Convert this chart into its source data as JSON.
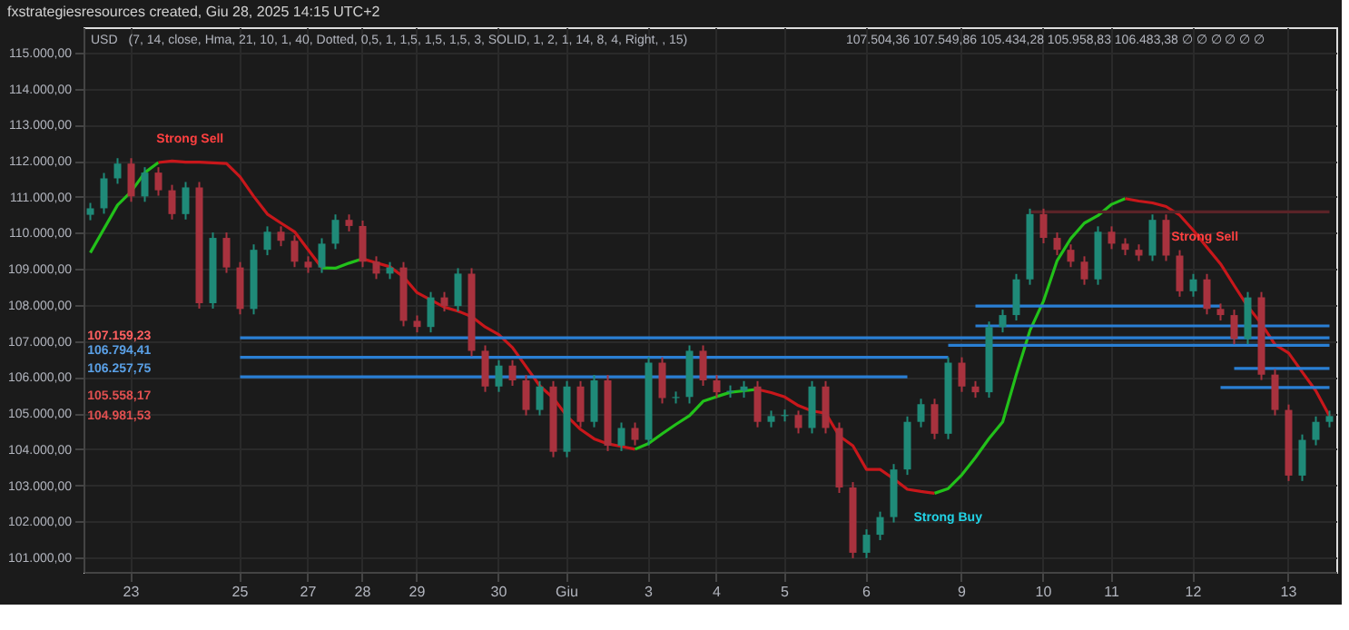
{
  "chart_data": {
    "type": "candlestick",
    "title": "fxstrategiesresources created, Giu 28, 2025 14:15 UTC+2",
    "categories": [
      null,
      null,
      null,
      "23",
      null,
      null,
      null,
      null,
      null,
      null,
      null,
      "25",
      null,
      null,
      null,
      null,
      "27",
      null,
      null,
      null,
      "28",
      null,
      null,
      null,
      "29",
      null,
      null,
      null,
      null,
      null,
      "30",
      null,
      null,
      null,
      null,
      "Giu",
      null,
      null,
      null,
      null,
      null,
      "3",
      null,
      null,
      null,
      null,
      "4",
      null,
      null,
      null,
      null,
      "5",
      null,
      null,
      null,
      null,
      null,
      "6",
      null,
      null,
      null,
      null,
      null,
      null,
      "9",
      null,
      null,
      null,
      null,
      null,
      "10",
      null,
      null,
      null,
      null,
      "11",
      null,
      null,
      null,
      null,
      null,
      "12",
      null,
      null,
      null,
      null,
      null,
      null,
      "13",
      null,
      null,
      null
    ],
    "ohlc": [
      [
        110500,
        110830,
        110350,
        110680
      ],
      [
        110680,
        111660,
        110530,
        111510
      ],
      [
        111510,
        112070,
        111360,
        111920
      ],
      [
        111920,
        112070,
        110860,
        111010
      ],
      [
        111010,
        111820,
        110860,
        111670
      ],
      [
        111670,
        111820,
        111030,
        111180
      ],
      [
        111180,
        111330,
        110370,
        110520
      ],
      [
        110520,
        111410,
        110370,
        111260
      ],
      [
        111260,
        111410,
        107900,
        108050
      ],
      [
        108050,
        110010,
        107900,
        109860
      ],
      [
        109860,
        110010,
        108890,
        109040
      ],
      [
        109040,
        109190,
        107740,
        107890
      ],
      [
        107890,
        109680,
        107740,
        109530
      ],
      [
        109530,
        110180,
        109380,
        110030
      ],
      [
        110030,
        110180,
        109630,
        109780
      ],
      [
        109780,
        109930,
        109050,
        109200
      ],
      [
        109200,
        109350,
        108890,
        109040
      ],
      [
        109040,
        109850,
        108890,
        109700
      ],
      [
        109700,
        110510,
        109550,
        110360
      ],
      [
        110360,
        110510,
        110040,
        110190
      ],
      [
        110190,
        110340,
        109050,
        109200
      ],
      [
        109200,
        109350,
        108720,
        108870
      ],
      [
        108870,
        109190,
        108720,
        109040
      ],
      [
        109040,
        109190,
        107410,
        107560
      ],
      [
        107560,
        107710,
        107240,
        107390
      ],
      [
        107390,
        108360,
        107240,
        108210
      ],
      [
        108210,
        108360,
        107820,
        107970
      ],
      [
        107970,
        109020,
        107820,
        108870
      ],
      [
        108870,
        109020,
        106580,
        106730
      ],
      [
        106730,
        106880,
        105590,
        105740
      ],
      [
        105740,
        106470,
        105590,
        106320
      ],
      [
        106320,
        106470,
        105760,
        105910
      ],
      [
        105910,
        106060,
        104940,
        105090
      ],
      [
        105090,
        105890,
        104940,
        105740
      ],
      [
        105740,
        105890,
        103780,
        103930
      ],
      [
        103930,
        105890,
        103780,
        105740
      ],
      [
        105740,
        105890,
        104610,
        104760
      ],
      [
        104760,
        106060,
        104610,
        105910
      ],
      [
        105910,
        106060,
        103950,
        104100
      ],
      [
        104100,
        104740,
        103950,
        104590
      ],
      [
        104590,
        104740,
        104110,
        104260
      ],
      [
        104260,
        106550,
        104110,
        106400
      ],
      [
        106400,
        106550,
        105270,
        105420
      ],
      [
        105420,
        105600,
        105270,
        105450
      ],
      [
        105450,
        106880,
        105270,
        106730
      ],
      [
        106730,
        106880,
        105760,
        105910
      ],
      [
        105910,
        106060,
        105430,
        105580
      ],
      [
        105580,
        105770,
        105430,
        105620
      ],
      [
        105620,
        105890,
        105430,
        105740
      ],
      [
        105740,
        105890,
        104610,
        104760
      ],
      [
        104760,
        105070,
        104610,
        104920
      ],
      [
        104920,
        105100,
        104770,
        104950
      ],
      [
        104950,
        105070,
        104440,
        104590
      ],
      [
        104590,
        105890,
        104440,
        105740
      ],
      [
        105740,
        105890,
        104440,
        104590
      ],
      [
        104590,
        104740,
        102790,
        102940
      ],
      [
        102940,
        103090,
        100980,
        101130
      ],
      [
        101130,
        101780,
        100980,
        101630
      ],
      [
        101630,
        102270,
        101480,
        102120
      ],
      [
        102120,
        103590,
        101970,
        103440
      ],
      [
        103440,
        104910,
        103290,
        104760
      ],
      [
        104760,
        105400,
        104610,
        105250
      ],
      [
        105250,
        105400,
        104280,
        104430
      ],
      [
        104430,
        106550,
        104280,
        106400
      ],
      [
        106400,
        106550,
        105590,
        105740
      ],
      [
        105740,
        105890,
        105430,
        105580
      ],
      [
        105580,
        107540,
        105430,
        107390
      ],
      [
        107390,
        107870,
        107240,
        107720
      ],
      [
        107720,
        108860,
        107570,
        108710
      ],
      [
        108710,
        110670,
        108560,
        110520
      ],
      [
        110520,
        110670,
        109710,
        109860
      ],
      [
        109860,
        110010,
        109380,
        109530
      ],
      [
        109530,
        109680,
        109050,
        109200
      ],
      [
        109200,
        109350,
        108560,
        108710
      ],
      [
        108710,
        110180,
        108560,
        110030
      ],
      [
        110030,
        110180,
        109550,
        109700
      ],
      [
        109700,
        109850,
        109380,
        109530
      ],
      [
        109530,
        109680,
        109220,
        109370
      ],
      [
        109370,
        110510,
        109220,
        110360
      ],
      [
        110360,
        110510,
        109220,
        109370
      ],
      [
        109370,
        109520,
        108230,
        108380
      ],
      [
        108380,
        108860,
        108230,
        108710
      ],
      [
        108710,
        108860,
        107740,
        107890
      ],
      [
        107890,
        108040,
        107570,
        107720
      ],
      [
        107720,
        107870,
        106910,
        107060
      ],
      [
        107060,
        108360,
        106910,
        108210
      ],
      [
        108210,
        108360,
        105920,
        106070
      ],
      [
        106070,
        106220,
        104940,
        105090
      ],
      [
        105090,
        105240,
        103120,
        103270
      ],
      [
        103270,
        104410,
        103120,
        104260
      ],
      [
        104260,
        104910,
        104110,
        104760
      ],
      [
        104760,
        105070,
        104610,
        104920
      ]
    ],
    "series": [
      {
        "type": "line",
        "color": "#22c11a",
        "values": [
          109450,
          110110,
          110770,
          111140,
          111670,
          111950,
          null,
          null,
          null,
          null,
          null,
          null,
          null,
          null,
          null,
          null,
          null,
          null,
          null,
          null,
          null,
          null,
          null,
          null,
          null,
          null,
          null,
          null,
          null,
          null,
          null,
          null,
          null,
          null,
          null,
          null,
          null,
          null,
          null,
          null,
          null,
          null,
          null,
          null,
          null,
          null,
          null,
          null,
          null,
          null,
          null,
          null,
          null,
          null,
          null,
          null,
          null,
          null,
          null,
          null,
          null,
          null,
          null,
          null,
          null,
          null,
          null,
          null,
          null,
          null,
          null,
          null,
          null,
          null,
          null,
          null,
          null,
          null,
          null,
          null,
          null,
          null,
          null,
          null,
          null,
          null,
          null,
          null,
          null,
          null,
          null,
          null
        ]
      },
      {
        "type": "line",
        "color": "#c8171b",
        "values": [
          null,
          null,
          null,
          null,
          null,
          111950,
          111990,
          111960,
          111960,
          111940,
          111920,
          111550,
          111010,
          110520,
          110270,
          110030,
          109530,
          109030,
          null,
          null,
          null,
          null,
          null,
          null,
          null,
          null,
          null,
          null,
          null,
          null,
          null,
          null,
          null,
          null,
          null,
          null,
          null,
          null,
          null,
          null,
          null,
          null,
          null,
          null,
          null,
          null,
          null,
          null,
          null,
          null,
          null,
          null,
          null,
          null,
          null,
          null,
          null,
          null,
          null,
          null,
          null,
          null,
          null,
          null,
          null,
          null,
          null,
          null,
          null,
          null,
          null,
          null,
          null,
          null,
          null,
          null,
          null,
          null,
          null,
          null,
          null,
          null,
          null,
          null,
          null,
          null,
          null,
          null,
          null,
          null,
          null,
          null
        ]
      },
      {
        "type": "line",
        "color": "#22c11a",
        "values": [
          null,
          null,
          null,
          null,
          null,
          null,
          null,
          null,
          null,
          null,
          null,
          null,
          null,
          null,
          null,
          null,
          null,
          109030,
          109020,
          109160,
          109280,
          null,
          null,
          null,
          null,
          null,
          null,
          null,
          null,
          null,
          null,
          null,
          null,
          null,
          null,
          null,
          null,
          null,
          null,
          null,
          null,
          null,
          null,
          null,
          null,
          null,
          null,
          null,
          null,
          null,
          null,
          null,
          null,
          null,
          null,
          null,
          null,
          null,
          null,
          null,
          null,
          null,
          null,
          null,
          null,
          null,
          null,
          null,
          null,
          null,
          null,
          null,
          null,
          null,
          null,
          null,
          null,
          null,
          null,
          null,
          null,
          null,
          null,
          null,
          null,
          null,
          null,
          null,
          null,
          null,
          null,
          null
        ]
      },
      {
        "type": "line",
        "color": "#c8171b",
        "values": [
          null,
          null,
          null,
          null,
          null,
          null,
          null,
          null,
          null,
          null,
          null,
          null,
          null,
          null,
          null,
          null,
          null,
          null,
          null,
          null,
          109280,
          109170,
          109060,
          108780,
          108340,
          108140,
          107940,
          107830,
          107680,
          107390,
          107180,
          106820,
          106290,
          105760,
          105420,
          104920,
          104550,
          104290,
          104150,
          104080,
          104000,
          null,
          null,
          null,
          null,
          null,
          null,
          null,
          null,
          null,
          null,
          null,
          null,
          null,
          null,
          null,
          null,
          null,
          null,
          null,
          null,
          null,
          null,
          null,
          null,
          null,
          null,
          null,
          null,
          null,
          null,
          null,
          null,
          null,
          null,
          null,
          null,
          null,
          null,
          null,
          null,
          null,
          null,
          null,
          null,
          null,
          null,
          null,
          null,
          null,
          null,
          null
        ]
      },
      {
        "type": "line",
        "color": "#22c11a",
        "values": [
          null,
          null,
          null,
          null,
          null,
          null,
          null,
          null,
          null,
          null,
          null,
          null,
          null,
          null,
          null,
          null,
          null,
          null,
          null,
          null,
          null,
          null,
          null,
          null,
          null,
          null,
          null,
          null,
          null,
          null,
          null,
          null,
          null,
          null,
          null,
          null,
          null,
          null,
          null,
          null,
          104000,
          104160,
          104430,
          104690,
          104930,
          105330,
          105460,
          105580,
          105620,
          105660,
          null,
          null,
          null,
          null,
          null,
          null,
          null,
          null,
          null,
          null,
          null,
          null,
          null,
          null,
          null,
          null,
          null,
          null,
          null,
          null,
          null,
          null,
          null,
          null,
          null,
          null,
          null,
          null,
          null,
          null,
          null,
          null,
          null,
          null,
          null,
          null,
          null,
          null,
          null,
          null,
          null,
          null
        ]
      },
      {
        "type": "line",
        "color": "#c8171b",
        "values": [
          null,
          null,
          null,
          null,
          null,
          null,
          null,
          null,
          null,
          null,
          null,
          null,
          null,
          null,
          null,
          null,
          null,
          null,
          null,
          null,
          null,
          null,
          null,
          null,
          null,
          null,
          null,
          null,
          null,
          null,
          null,
          null,
          null,
          null,
          null,
          null,
          null,
          null,
          null,
          null,
          null,
          null,
          null,
          null,
          null,
          null,
          null,
          null,
          null,
          105660,
          105570,
          105450,
          105210,
          105060,
          105000,
          104370,
          104100,
          103440,
          103440,
          103180,
          102890,
          102830,
          102780,
          null,
          null,
          null,
          null,
          null,
          null,
          null,
          null,
          null,
          null,
          null,
          null,
          null,
          null,
          null,
          null,
          null,
          null,
          null,
          null,
          null,
          null,
          null,
          null,
          null,
          null,
          null,
          null,
          null
        ]
      },
      {
        "type": "line",
        "color": "#22c11a",
        "values": [
          null,
          null,
          null,
          null,
          null,
          null,
          null,
          null,
          null,
          null,
          null,
          null,
          null,
          null,
          null,
          null,
          null,
          null,
          null,
          null,
          null,
          null,
          null,
          null,
          null,
          null,
          null,
          null,
          null,
          null,
          null,
          null,
          null,
          null,
          null,
          null,
          null,
          null,
          null,
          null,
          null,
          null,
          null,
          null,
          null,
          null,
          null,
          null,
          null,
          null,
          null,
          null,
          null,
          null,
          null,
          null,
          null,
          null,
          null,
          null,
          null,
          null,
          102780,
          102910,
          103290,
          103770,
          104300,
          104760,
          106070,
          107290,
          108110,
          109230,
          109840,
          110270,
          110480,
          110790,
          110950,
          null,
          null,
          null,
          null,
          null,
          null,
          null,
          null,
          null,
          null,
          null,
          null,
          null,
          null,
          null
        ]
      },
      {
        "type": "line",
        "color": "#c8171b",
        "values": [
          null,
          null,
          null,
          null,
          null,
          null,
          null,
          null,
          null,
          null,
          null,
          null,
          null,
          null,
          null,
          null,
          null,
          null,
          null,
          null,
          null,
          null,
          null,
          null,
          null,
          null,
          null,
          null,
          null,
          null,
          null,
          null,
          null,
          null,
          null,
          null,
          null,
          null,
          null,
          null,
          null,
          null,
          null,
          null,
          null,
          null,
          null,
          null,
          null,
          null,
          null,
          null,
          null,
          null,
          null,
          null,
          null,
          null,
          null,
          null,
          null,
          null,
          null,
          null,
          null,
          null,
          null,
          null,
          null,
          null,
          null,
          null,
          null,
          null,
          null,
          null,
          110950,
          110880,
          110830,
          110730,
          110490,
          110070,
          109600,
          109140,
          108540,
          107960,
          107480,
          106900,
          106670,
          106140,
          105620,
          104920
        ]
      },
      {
        "type": "line",
        "color": "#2a7fd4",
        "values": [
          null,
          null,
          null,
          null,
          null,
          null,
          null,
          null,
          null,
          null,
          null,
          107090,
          107090,
          107090,
          107090,
          107090,
          107090,
          107090,
          107090,
          107090,
          107090,
          107090,
          107090,
          107090,
          107090,
          107090,
          107090,
          107090,
          107090,
          107090,
          107090,
          107090,
          107090,
          107090,
          107090,
          107090,
          107090,
          107090,
          107090,
          107090,
          107090,
          107090,
          107090,
          107090,
          107090,
          107090,
          107090,
          107090,
          107090,
          107090,
          107090,
          107090,
          107090,
          107090,
          107090,
          107090,
          107090,
          107090,
          107090,
          107090,
          107090,
          107090,
          107090,
          107090,
          107090,
          107090,
          107090,
          107090,
          107090,
          107090,
          107090,
          107090,
          107090,
          107090,
          107090,
          107090,
          107090,
          107090,
          107090,
          107090,
          107090,
          107090,
          107090,
          107090,
          107090,
          107090,
          107090,
          107090,
          107090,
          107090,
          107090,
          107090
        ]
      },
      {
        "type": "line",
        "color": "#2a7fd4",
        "values": [
          null,
          null,
          null,
          null,
          null,
          null,
          null,
          null,
          null,
          null,
          null,
          106550,
          106550,
          106550,
          106550,
          106550,
          106550,
          106550,
          106550,
          106550,
          106550,
          106550,
          106550,
          106550,
          106550,
          106550,
          106550,
          106550,
          106550,
          106550,
          106550,
          106550,
          106550,
          106550,
          106550,
          106550,
          106550,
          106550,
          106550,
          106550,
          106550,
          106550,
          106550,
          106550,
          106550,
          106550,
          106550,
          106550,
          106550,
          106550,
          106550,
          106550,
          106550,
          106550,
          106550,
          106550,
          106550,
          106550,
          106550,
          106550,
          106550,
          106550,
          106550,
          106550,
          null,
          null,
          null,
          null,
          null,
          null,
          null,
          null,
          null,
          null,
          null,
          null,
          null,
          null,
          null,
          null,
          null,
          null,
          null,
          null,
          null,
          null,
          null,
          null,
          null,
          null,
          null,
          null
        ]
      },
      {
        "type": "line",
        "color": "#2a7fd4",
        "values": [
          null,
          null,
          null,
          null,
          null,
          null,
          null,
          null,
          null,
          null,
          null,
          106010,
          106010,
          106010,
          106010,
          106010,
          106010,
          106010,
          106010,
          106010,
          106010,
          106010,
          106010,
          106010,
          106010,
          106010,
          106010,
          106010,
          106010,
          106010,
          106010,
          106010,
          106010,
          106010,
          106010,
          106010,
          106010,
          106010,
          106010,
          106010,
          106010,
          106010,
          106010,
          106010,
          106010,
          106010,
          106010,
          106010,
          106010,
          106010,
          106010,
          106010,
          106010,
          106010,
          106010,
          106010,
          106010,
          106010,
          106010,
          106010,
          106010,
          null,
          null,
          null,
          null,
          null,
          null,
          null,
          null,
          null,
          null,
          null,
          null,
          null,
          null,
          null,
          null,
          null,
          null,
          null,
          null,
          null,
          null,
          null,
          null,
          null,
          null,
          null,
          null,
          null,
          null,
          null
        ]
      },
      {
        "type": "line",
        "color": "#2a7fd4",
        "values": [
          null,
          null,
          null,
          null,
          null,
          null,
          null,
          null,
          null,
          null,
          null,
          null,
          null,
          null,
          null,
          null,
          null,
          null,
          null,
          null,
          null,
          null,
          null,
          null,
          null,
          null,
          null,
          null,
          null,
          null,
          null,
          null,
          null,
          null,
          null,
          null,
          null,
          null,
          null,
          null,
          null,
          null,
          null,
          null,
          null,
          null,
          null,
          null,
          null,
          null,
          null,
          null,
          null,
          null,
          null,
          null,
          null,
          null,
          null,
          null,
          null,
          null,
          null,
          null,
          null,
          107970,
          107970,
          107970,
          107970,
          107970,
          107970,
          107970,
          107970,
          107970,
          107970,
          107970,
          107970,
          107970,
          107970,
          107970,
          107970,
          107970,
          107970,
          107970,
          null,
          null,
          null,
          null,
          null,
          null,
          null,
          null
        ]
      },
      {
        "type": "line",
        "color": "#2a7fd4",
        "values": [
          null,
          null,
          null,
          null,
          null,
          null,
          null,
          null,
          null,
          null,
          null,
          null,
          null,
          null,
          null,
          null,
          null,
          null,
          null,
          null,
          null,
          null,
          null,
          null,
          null,
          null,
          null,
          null,
          null,
          null,
          null,
          null,
          null,
          null,
          null,
          null,
          null,
          null,
          null,
          null,
          null,
          null,
          null,
          null,
          null,
          null,
          null,
          null,
          null,
          null,
          null,
          null,
          null,
          null,
          null,
          null,
          null,
          null,
          null,
          null,
          null,
          null,
          null,
          null,
          null,
          107420,
          107420,
          107420,
          107420,
          107420,
          107420,
          107420,
          107420,
          107420,
          107420,
          107420,
          107420,
          107420,
          107420,
          107420,
          107420,
          107420,
          107420,
          107420,
          107420,
          107420,
          107420,
          107420,
          107420,
          107420,
          107420,
          107420
        ]
      },
      {
        "type": "line",
        "color": "#2a7fd4",
        "values": [
          null,
          null,
          null,
          null,
          null,
          null,
          null,
          null,
          null,
          null,
          null,
          null,
          null,
          null,
          null,
          null,
          null,
          null,
          null,
          null,
          null,
          null,
          null,
          null,
          null,
          null,
          null,
          null,
          null,
          null,
          null,
          null,
          null,
          null,
          null,
          null,
          null,
          null,
          null,
          null,
          null,
          null,
          null,
          null,
          null,
          null,
          null,
          null,
          null,
          null,
          null,
          null,
          null,
          null,
          null,
          null,
          null,
          null,
          null,
          null,
          null,
          null,
          null,
          106880,
          106880,
          106880,
          106880,
          106880,
          106880,
          106880,
          106880,
          106880,
          106880,
          106880,
          106880,
          106880,
          106880,
          106880,
          106880,
          106880,
          106880,
          106880,
          106880,
          106880,
          106880,
          106880,
          106880,
          106880,
          106880,
          106880,
          106880,
          106880
        ]
      },
      {
        "type": "line",
        "color": "#2a7fd4",
        "values": [
          null,
          null,
          null,
          null,
          null,
          null,
          null,
          null,
          null,
          null,
          null,
          null,
          null,
          null,
          null,
          null,
          null,
          null,
          null,
          null,
          null,
          null,
          null,
          null,
          null,
          null,
          null,
          null,
          null,
          null,
          null,
          null,
          null,
          null,
          null,
          null,
          null,
          null,
          null,
          null,
          null,
          null,
          null,
          null,
          null,
          null,
          null,
          null,
          null,
          null,
          null,
          null,
          null,
          null,
          null,
          null,
          null,
          null,
          null,
          null,
          null,
          null,
          null,
          null,
          null,
          null,
          null,
          null,
          null,
          null,
          null,
          null,
          null,
          null,
          null,
          null,
          null,
          null,
          null,
          null,
          null,
          null,
          null,
          null,
          106240,
          106240,
          106240,
          106240,
          106240,
          106240,
          106240,
          106240
        ]
      },
      {
        "type": "line",
        "color": "#2a7fd4",
        "values": [
          null,
          null,
          null,
          null,
          null,
          null,
          null,
          null,
          null,
          null,
          null,
          null,
          null,
          null,
          null,
          null,
          null,
          null,
          null,
          null,
          null,
          null,
          null,
          null,
          null,
          null,
          null,
          null,
          null,
          null,
          null,
          null,
          null,
          null,
          null,
          null,
          null,
          null,
          null,
          null,
          null,
          null,
          null,
          null,
          null,
          null,
          null,
          null,
          null,
          null,
          null,
          null,
          null,
          null,
          null,
          null,
          null,
          null,
          null,
          null,
          null,
          null,
          null,
          null,
          null,
          null,
          null,
          null,
          null,
          null,
          null,
          null,
          null,
          null,
          null,
          null,
          null,
          null,
          null,
          null,
          null,
          null,
          null,
          105710,
          105710,
          105710,
          105710,
          105710,
          105710,
          105710,
          105710,
          105710
        ]
      },
      {
        "type": "line",
        "color": "#5a2327",
        "values": [
          null,
          null,
          null,
          null,
          null,
          null,
          null,
          null,
          null,
          null,
          null,
          null,
          null,
          null,
          null,
          null,
          null,
          null,
          null,
          null,
          null,
          null,
          null,
          null,
          null,
          null,
          null,
          null,
          null,
          null,
          null,
          null,
          null,
          null,
          null,
          null,
          null,
          null,
          null,
          null,
          null,
          null,
          null,
          null,
          null,
          null,
          null,
          null,
          null,
          null,
          null,
          null,
          null,
          null,
          null,
          null,
          null,
          null,
          null,
          null,
          null,
          null,
          null,
          null,
          null,
          null,
          null,
          null,
          null,
          110580,
          110580,
          110580,
          110580,
          110580,
          110580,
          110580,
          110580,
          110580,
          110580,
          110580,
          110580,
          110580,
          110580,
          110580,
          110580,
          110580,
          110580,
          110580,
          110580,
          110580,
          110580,
          110580
        ]
      }
    ],
    "ylim": [
      100600,
      115700
    ],
    "yticks": [
      {
        "value": 101000,
        "label": "101.000,00"
      },
      {
        "value": 102000,
        "label": "102.000,00"
      },
      {
        "value": 103000,
        "label": "103.000,00"
      },
      {
        "value": 104000,
        "label": "104.000,00"
      },
      {
        "value": 105000,
        "label": "105.000,00"
      },
      {
        "value": 106000,
        "label": "106.000,00"
      },
      {
        "value": 107000,
        "label": "107.000,00"
      },
      {
        "value": 108000,
        "label": "108.000,00"
      },
      {
        "value": 109000,
        "label": "109.000,00"
      },
      {
        "value": 110000,
        "label": "110.000,00"
      },
      {
        "value": 111000,
        "label": "111.000,00"
      },
      {
        "value": 112000,
        "label": "112.000,00"
      },
      {
        "value": 113000,
        "label": "113.000,00"
      },
      {
        "value": 114000,
        "label": "114.000,00"
      },
      {
        "value": 115000,
        "label": "115.000,00"
      }
    ],
    "grid": true,
    "annotations": [
      "USD",
      "(7, 14, close, Hma, 21, 10, 1, 40, Dotted, 0,5, 1, 1,5, 1,5, 1,5, 3, SOLID, 1, 2, 1, 14, 8, 4, Right, , 15)",
      "107.504,36  107.549,86  105.434,28  105.958,83  106.483,38  ∅ ∅ ∅ ∅ ∅ ∅",
      "Strong Sell",
      "Strong Buy",
      "Strong Sell",
      "107.159,23",
      "106.794,41",
      "106.257,75",
      "105.558,17",
      "104.981,53"
    ]
  }
}
